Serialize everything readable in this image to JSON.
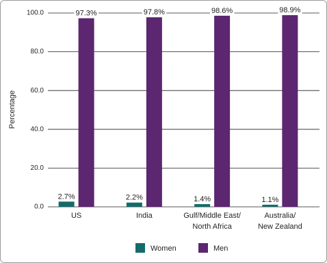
{
  "chart_data": {
    "type": "bar",
    "y_label": "Percentage",
    "categories": [
      "US",
      "India",
      "Gulf/Middle East/\nNorth Africa",
      "Australia/\nNew Zealand"
    ],
    "series": [
      {
        "name": "Women",
        "color": "#156b69",
        "values": [
          2.7,
          2.2,
          1.4,
          1.1
        ],
        "value_labels": [
          "2.7%",
          "2.2%",
          "1.4%",
          "1.1%"
        ]
      },
      {
        "name": "Men",
        "color": "#5c2670",
        "values": [
          97.3,
          97.8,
          98.6,
          98.9
        ],
        "value_labels": [
          "97.3%",
          "97.8%",
          "98.6%",
          "98.9%"
        ]
      }
    ],
    "ylim": [
      0,
      100
    ],
    "yticks": [
      {
        "value": 0,
        "label": "0.0"
      },
      {
        "value": 20,
        "label": "20.0"
      },
      {
        "value": 40,
        "label": "40.0"
      },
      {
        "value": 60,
        "label": "60.0"
      },
      {
        "value": 80,
        "label": "80.0"
      },
      {
        "value": 100,
        "label": "100.0"
      }
    ],
    "grid": true,
    "legend": "bottom"
  }
}
